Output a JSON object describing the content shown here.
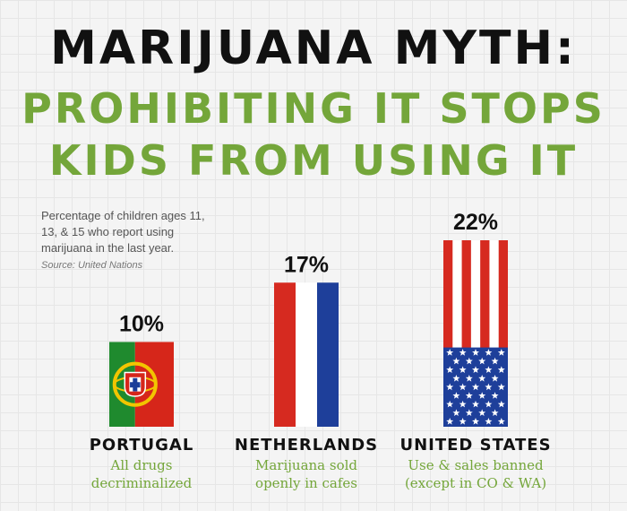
{
  "title": {
    "line1": "MARIJUANA MYTH:",
    "line2": "PROHIBITING IT STOPS",
    "line3": "KIDS FROM USING IT"
  },
  "note": "Percentage of children ages 11, 13, & 15 who report using marijuana in the last year.",
  "source": "Source: United Nations",
  "colors": {
    "title": "#111111",
    "accent": "#74a63a"
  },
  "chart_data": {
    "type": "bar",
    "unit": "%",
    "categories": [
      "PORTUGAL",
      "NETHERLANDS",
      "UNITED STATES"
    ],
    "values": [
      10,
      17,
      22
    ],
    "value_labels": [
      "10%",
      "17%",
      "22%"
    ],
    "descriptions": [
      [
        "All drugs",
        "decriminalized"
      ],
      [
        "Marijuana sold",
        "openly in cafes"
      ],
      [
        "Use & sales banned",
        "(except in CO & WA)"
      ]
    ],
    "bar_styles": [
      "flag-portugal",
      "flag-netherlands",
      "flag-united-states"
    ],
    "ylim": [
      0,
      22
    ]
  }
}
